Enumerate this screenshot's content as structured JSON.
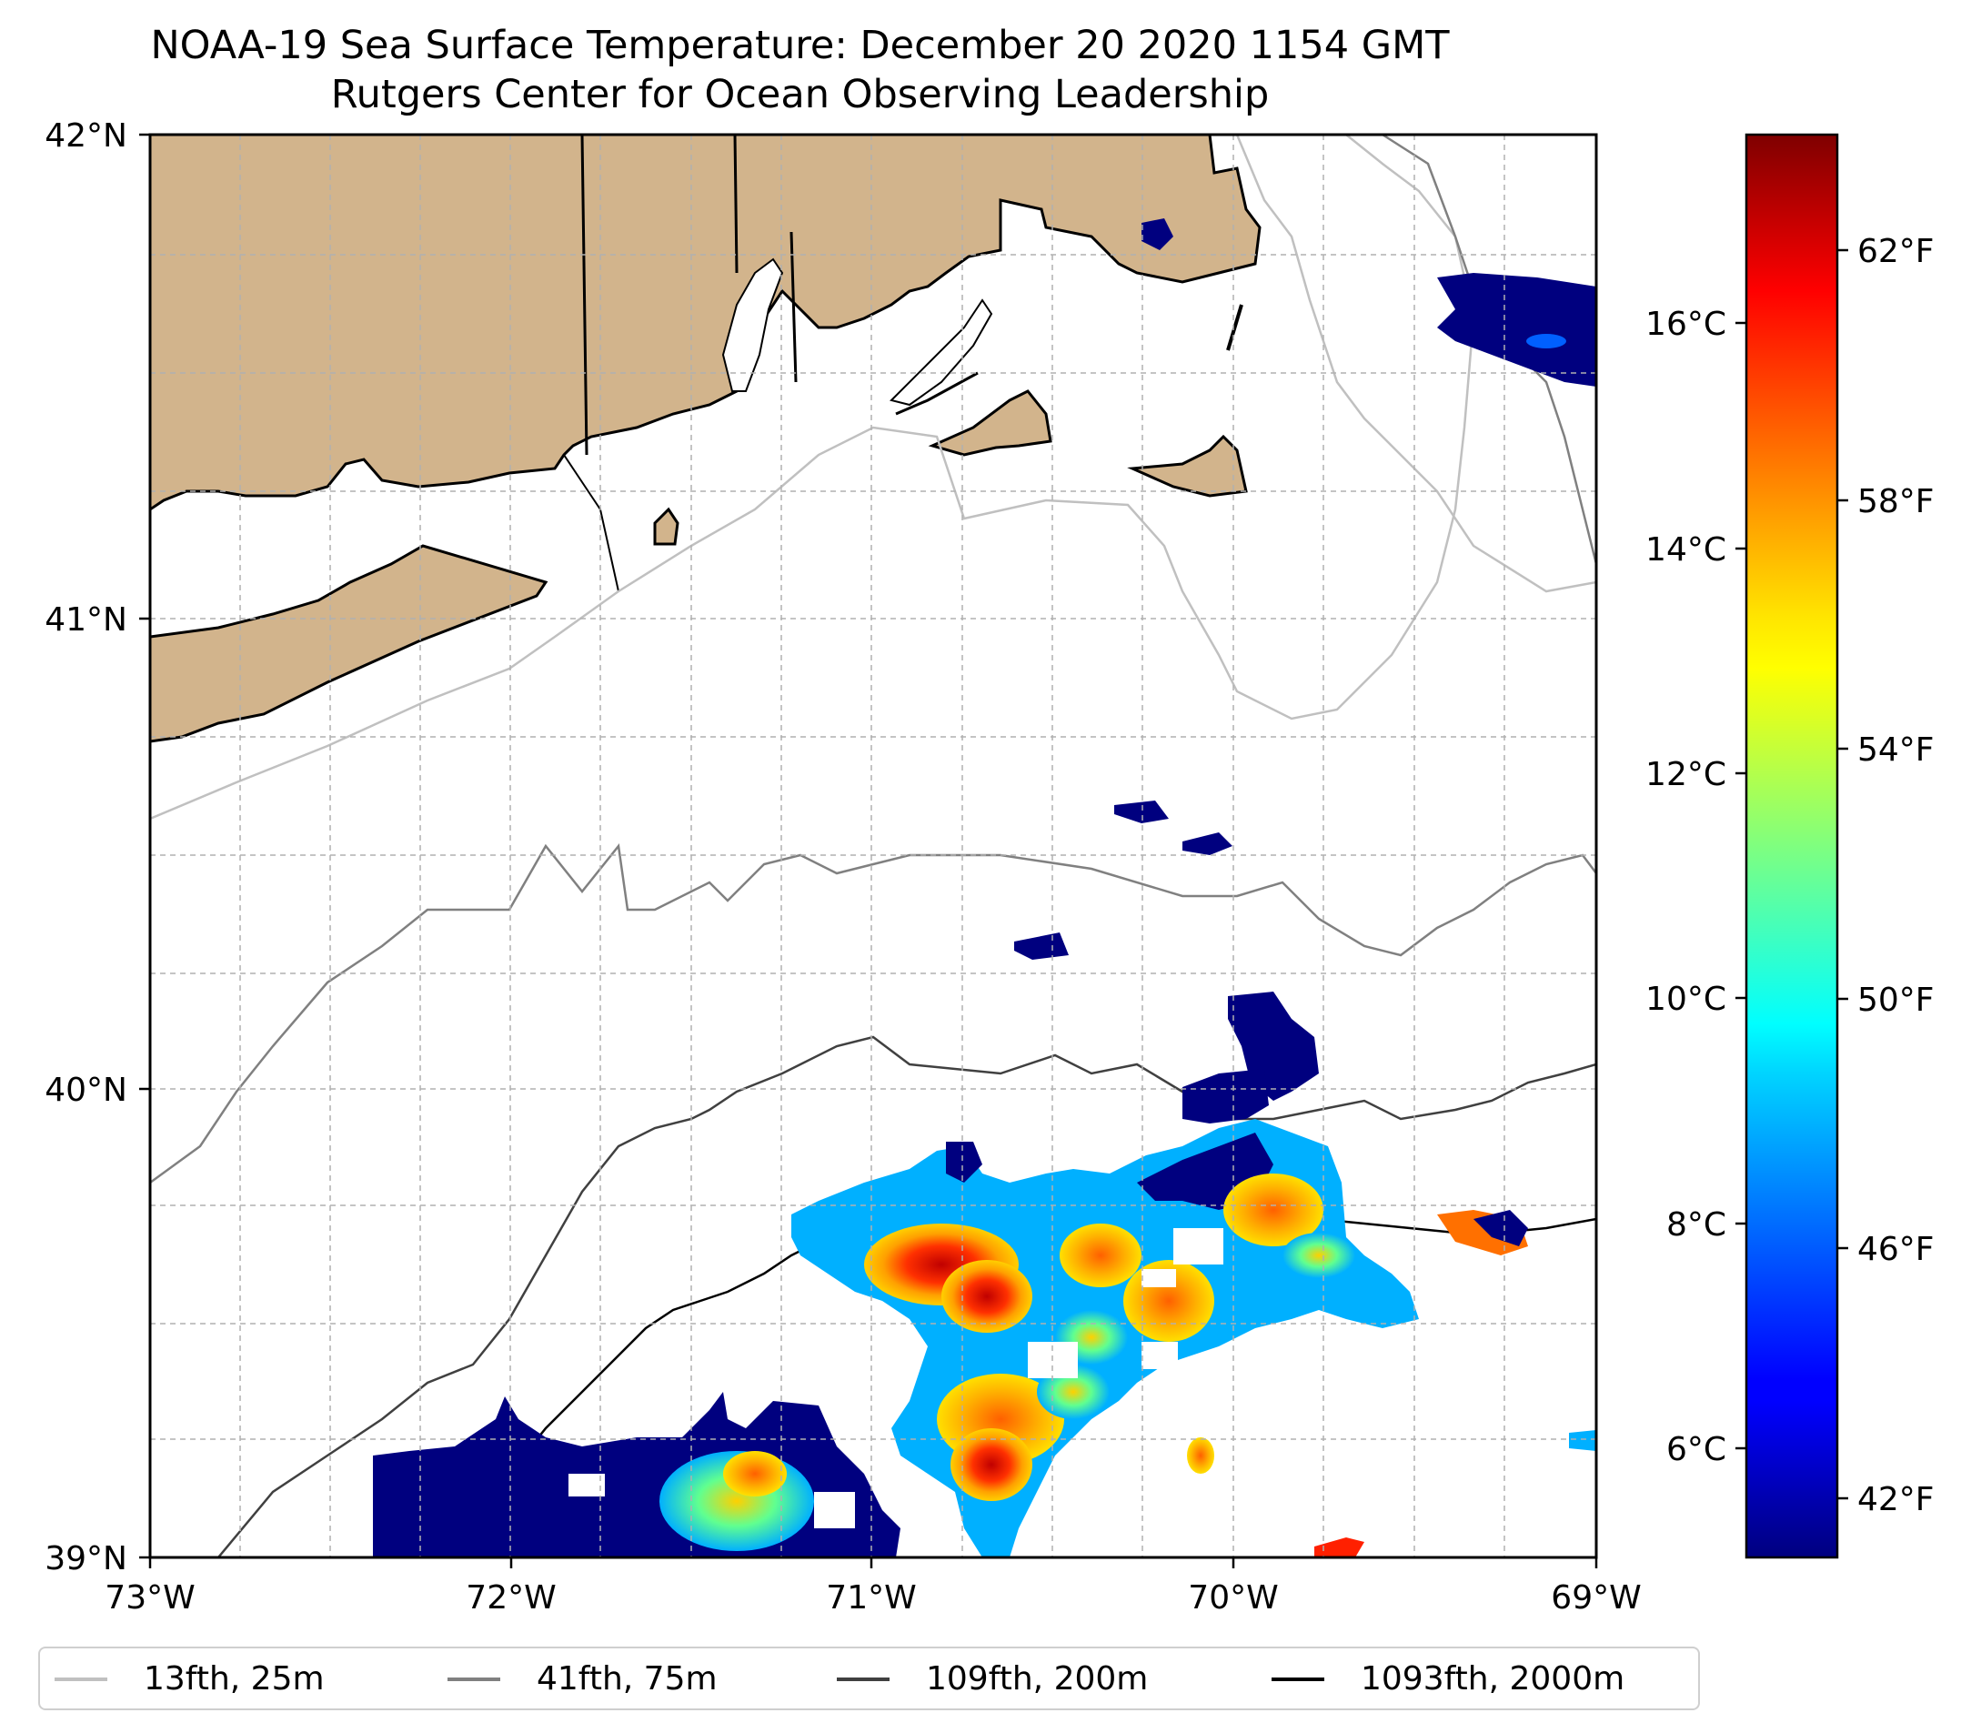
{
  "title": "NOAA-19 Sea Surface Temperature: December 20 2020 1154 GMT",
  "subtitle": "Rutgers Center for Ocean Observing Leadership",
  "map": {
    "lon_ticks": [
      "73°W",
      "72°W",
      "71°W",
      "70°W",
      "69°W"
    ],
    "lat_ticks": [
      "42°N",
      "41°N",
      "40°N",
      "39°N"
    ],
    "extent": {
      "lon_min": -73,
      "lon_max": -69,
      "lat_min": 39,
      "lat_max": 42
    },
    "land_color": "#d2b48c",
    "gridlines": true
  },
  "colorbar": {
    "colormap": "jet",
    "celsius_ticks": [
      "16°C",
      "14°C",
      "12°C",
      "10°C",
      "8°C",
      "6°C"
    ],
    "fahrenheit_ticks": [
      "62°F",
      "58°F",
      "54°F",
      "50°F",
      "46°F",
      "42°F"
    ]
  },
  "legend": {
    "items": [
      {
        "label": "13fth, 25m",
        "color": "#c0c0c0"
      },
      {
        "label": "41fth, 75m",
        "color": "#808080"
      },
      {
        "label": "109fth, 200m",
        "color": "#404040"
      },
      {
        "label": "1093fth, 2000m",
        "color": "#000000"
      }
    ]
  }
}
